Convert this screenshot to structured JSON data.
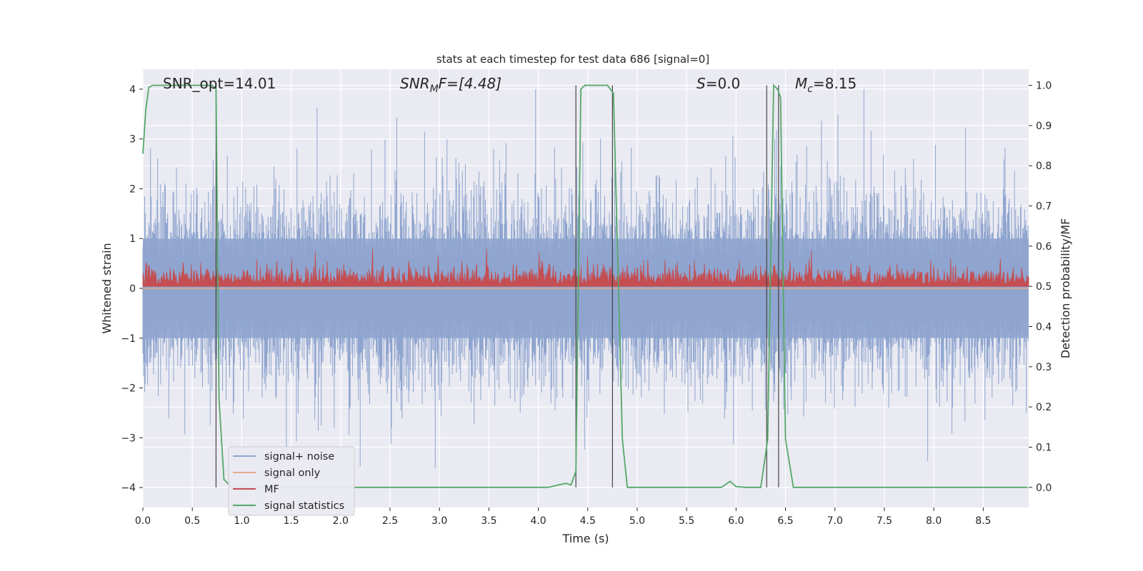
{
  "chart_data": {
    "type": "line",
    "title": "stats at each timestep for test data 686 [signal=0]",
    "xlabel": "Time (s)",
    "ylabel_left": "Whitened strain",
    "ylabel_right": "Detection probability/MF",
    "xlim": [
      0,
      8.96
    ],
    "ylim_left": [
      -4.4,
      4.4
    ],
    "ylim_right": [
      -0.05,
      1.04
    ],
    "x_ticks": [
      0.0,
      0.5,
      1.0,
      1.5,
      2.0,
      2.5,
      3.0,
      3.5,
      4.0,
      4.5,
      5.0,
      5.5,
      6.0,
      6.5,
      7.0,
      7.5,
      8.0,
      8.5
    ],
    "y_ticks_left": [
      -4,
      -3,
      -2,
      -1,
      0,
      1,
      2,
      3,
      4
    ],
    "y_ticks_right": [
      0.0,
      0.1,
      0.2,
      0.3,
      0.4,
      0.5,
      0.6,
      0.7,
      0.8,
      0.9,
      1.0
    ],
    "annotations": {
      "snr_opt": "SNR_opt=14.01",
      "snr_mf_main": "SNR",
      "snr_mf_sub": "M",
      "snr_mf_rest": "F=[4.48]",
      "s_main": "S",
      "s_rest": "=0.0",
      "mc_main": "M",
      "mc_sub": "c",
      "mc_rest": "=8.15"
    },
    "legend": {
      "placement": "lower-left",
      "entries": [
        "signal+ noise",
        "signal only",
        "MF",
        "signal statistics"
      ]
    },
    "grid": true,
    "series": [
      {
        "name": "signal+ noise",
        "axis": "left",
        "color": "#8fa5cf",
        "description": "whitened noisy strain, amplitude mostly within ±2, peaks near ±4"
      },
      {
        "name": "signal only",
        "axis": "left",
        "color": "#e8a88a",
        "values": "flat at 0"
      },
      {
        "name": "MF",
        "axis": "right",
        "color": "#c44e52",
        "description": "matched filter output fluctuating between about 0.5 and 0.6"
      },
      {
        "name": "signal statistics",
        "axis": "right",
        "color": "#55a868",
        "x": [
          0.0,
          0.03,
          0.06,
          0.1,
          0.2,
          0.7,
          0.74,
          0.77,
          0.82,
          0.9,
          1.0,
          4.1,
          4.2,
          4.28,
          4.33,
          4.38,
          4.43,
          4.47,
          4.55,
          4.7,
          4.76,
          4.8,
          4.85,
          4.9,
          5.5,
          5.85,
          5.94,
          6.0,
          6.1,
          6.25,
          6.32,
          6.38,
          6.42,
          6.45,
          6.5,
          6.58,
          8.95
        ],
        "values": [
          0.83,
          0.94,
          0.995,
          1.0,
          1.0,
          1.0,
          0.99,
          0.22,
          0.02,
          0.0,
          0.0,
          0.0,
          0.006,
          0.01,
          0.006,
          0.04,
          0.99,
          1.0,
          1.0,
          1.0,
          0.98,
          0.6,
          0.12,
          0.0,
          0.0,
          0.0,
          0.015,
          0.002,
          0.0,
          0.0,
          0.12,
          1.0,
          0.99,
          0.97,
          0.12,
          0.0,
          0.0
        ]
      }
    ],
    "vertical_lines_s": [
      0.74,
      4.38,
      4.75,
      6.31,
      6.43
    ]
  }
}
